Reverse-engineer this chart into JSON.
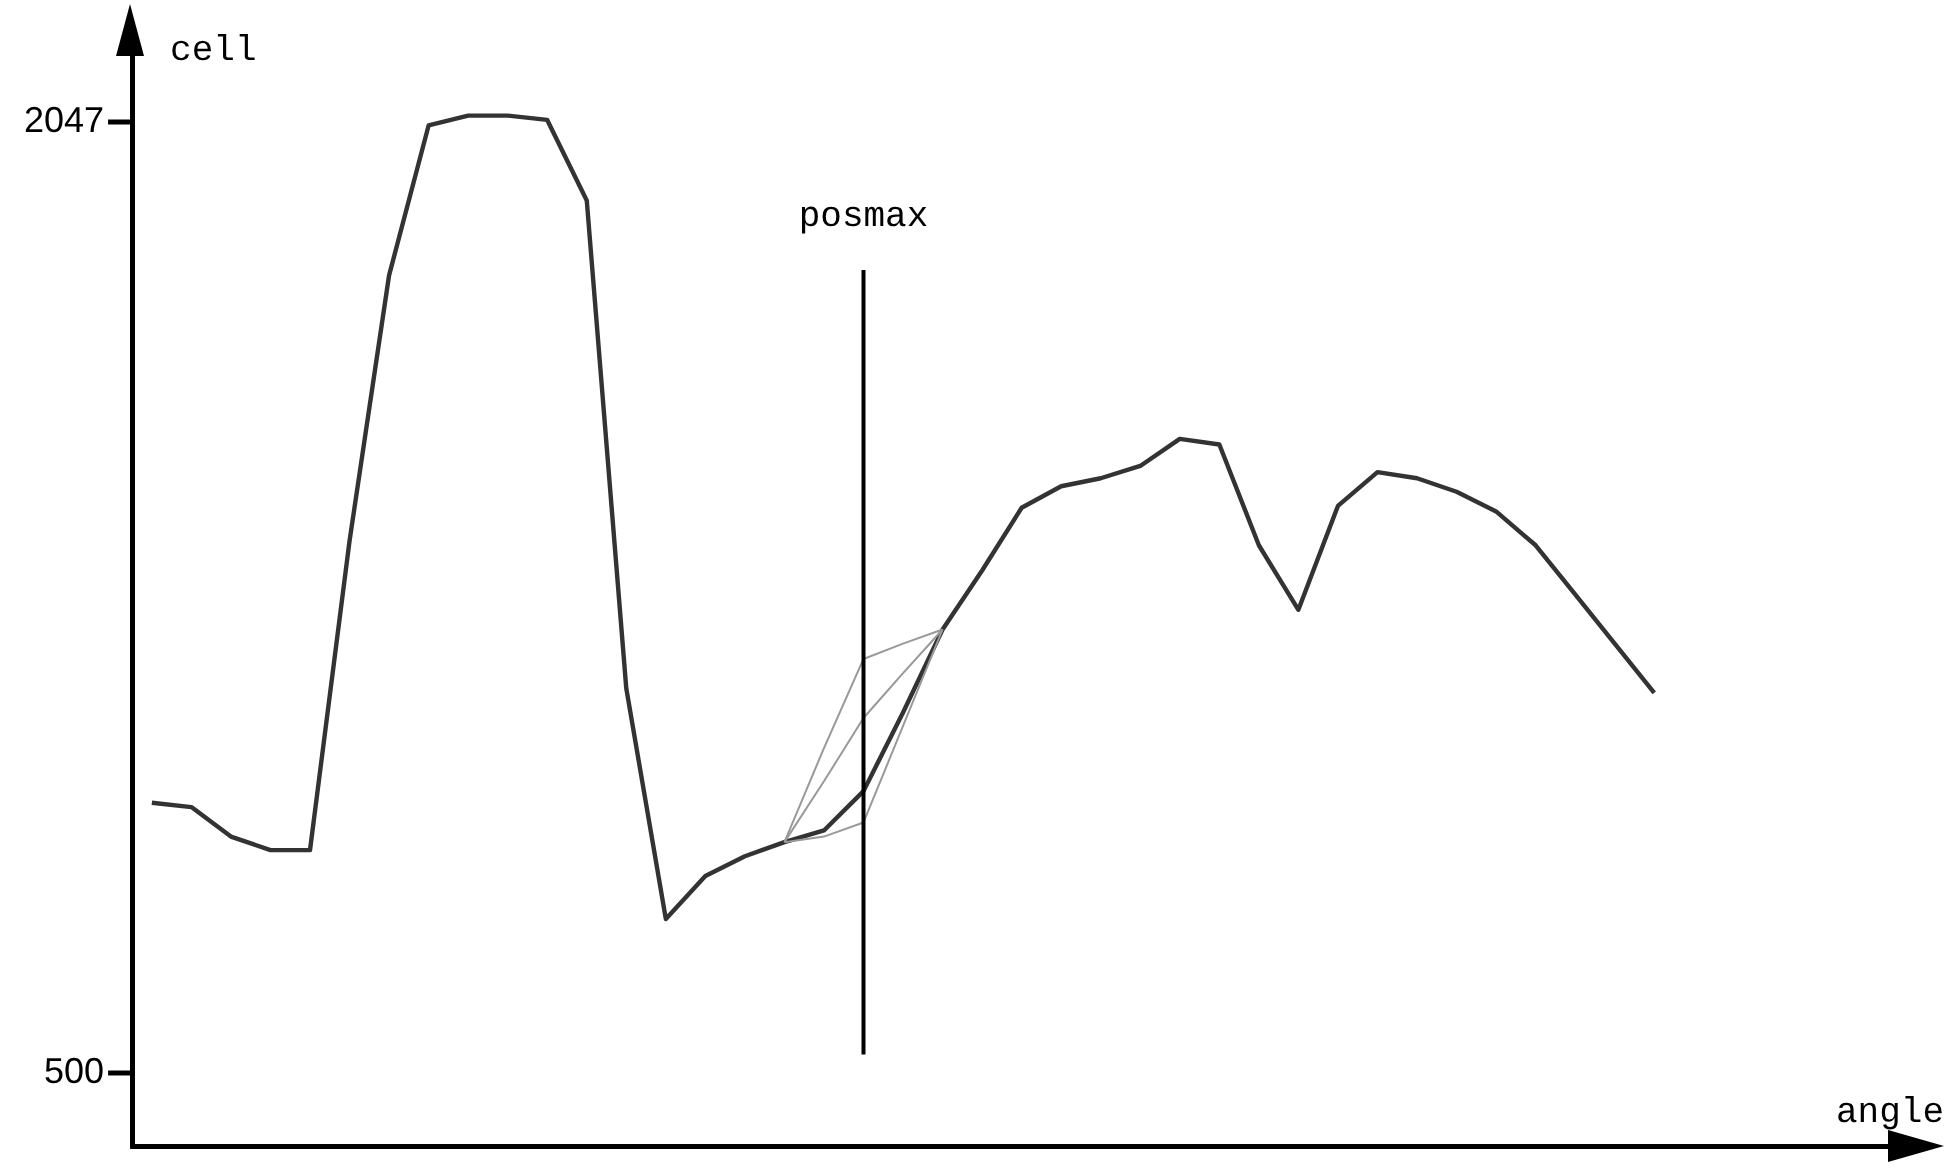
{
  "chart_data": {
    "type": "line",
    "xlabel": "angle",
    "ylabel": "cell",
    "categories": [
      null,
      null,
      null,
      null,
      null,
      null,
      null,
      null,
      null,
      null,
      null,
      null,
      null,
      null,
      null,
      null,
      null,
      null,
      null,
      null,
      null,
      null,
      null,
      null,
      null,
      null,
      null,
      null,
      null,
      null,
      null,
      null,
      null,
      null,
      null,
      null,
      null,
      null,
      null
    ],
    "series": [
      {
        "color": "#999999",
        "values": [
          null,
          null,
          null,
          null,
          null,
          null,
          null,
          null,
          null,
          null,
          null,
          null,
          null,
          null,
          null,
          null,
          875,
          1028,
          1173,
          1198,
          1221,
          null,
          null,
          null,
          null,
          null,
          null,
          null,
          null,
          null,
          null,
          null,
          null,
          null,
          null,
          null,
          null,
          null,
          null
        ]
      },
      {
        "color": "#999999",
        "values": [
          null,
          null,
          null,
          null,
          null,
          null,
          null,
          null,
          null,
          null,
          null,
          null,
          null,
          null,
          null,
          null,
          875,
          974,
          1077,
          1150,
          1221,
          null,
          null,
          null,
          null,
          null,
          null,
          null,
          null,
          null,
          null,
          null,
          null,
          null,
          null,
          null,
          null,
          null,
          null
        ]
      },
      {
        "color": "#999999",
        "values": [
          null,
          null,
          null,
          null,
          null,
          null,
          null,
          null,
          null,
          null,
          null,
          null,
          null,
          null,
          null,
          null,
          875,
          884,
          907,
          1064,
          1221,
          null,
          null,
          null,
          null,
          null,
          null,
          null,
          null,
          null,
          null,
          null,
          null,
          null,
          null,
          null,
          null,
          null,
          null
        ]
      },
      {
        "color": "#333333",
        "values": [
          939,
          932,
          884,
          862,
          862,
          1365,
          1797,
          2041,
          2057,
          2057,
          2050,
          1919,
          1125,
          750,
          820,
          852,
          875,
          894,
          958,
          1086,
          1221,
          1317,
          1419,
          1454,
          1467,
          1487,
          1531,
          1522,
          1358,
          1253,
          1422,
          1477,
          1467,
          1445,
          1413,
          1358,
          1278,
          1198,
          1118
        ]
      }
    ],
    "ylim": [
      380,
      2180
    ],
    "yticks": [
      500,
      2047
    ],
    "grid": false,
    "legend": false,
    "marker": "none",
    "line_style": "solid",
    "tick_labels": "y",
    "annotations": [
      "posmax"
    ]
  }
}
